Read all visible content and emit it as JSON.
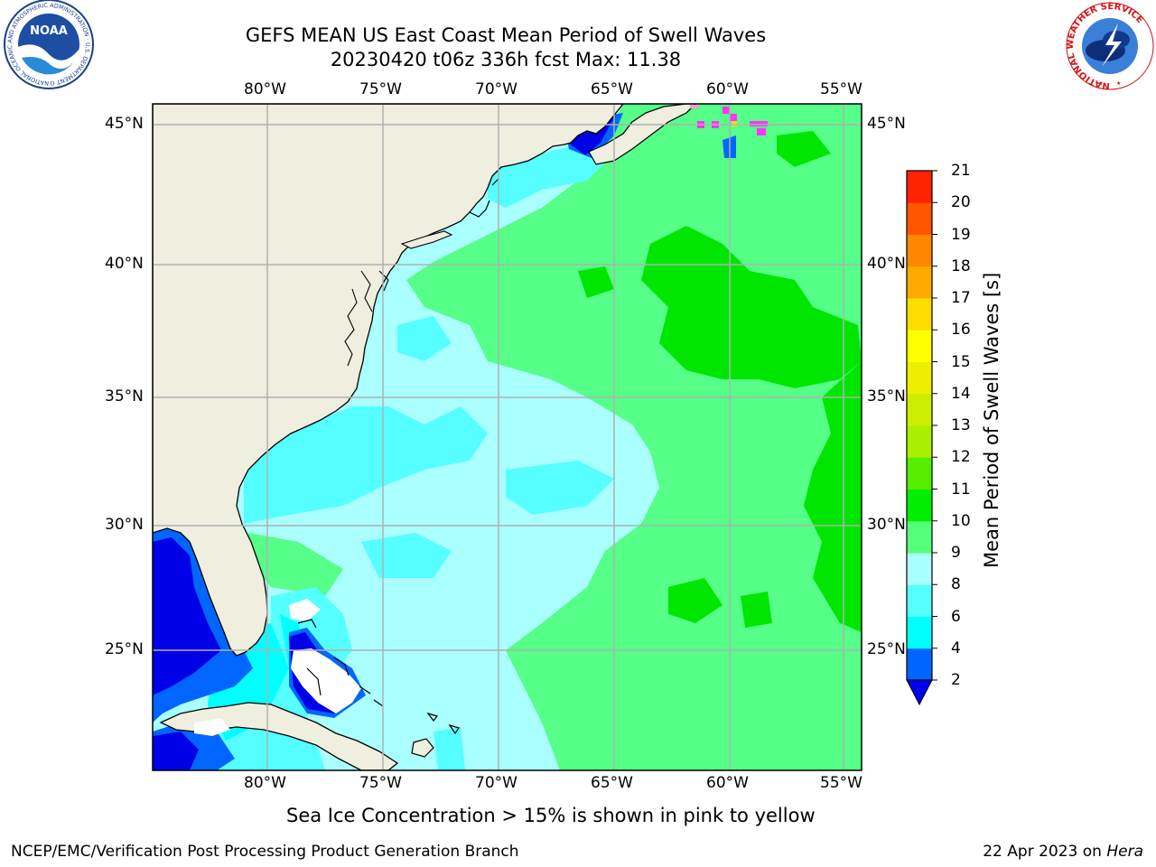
{
  "title": {
    "line1": "GEFS MEAN US East Coast Mean Period of Swell Waves",
    "line2": "20230420 t06z 336h fcst   Max: 11.38"
  },
  "axes": {
    "lon_labels": [
      "80°W",
      "75°W",
      "70°W",
      "65°W",
      "60°W",
      "55°W"
    ],
    "lat_labels": [
      "45°N",
      "40°N",
      "35°N",
      "30°N",
      "25°N"
    ]
  },
  "map": {
    "lon_range": [
      -85,
      -54
    ],
    "lat_range": [
      20.5,
      46
    ],
    "land_color": "#efeedf",
    "coast_color": "#000000",
    "grid_color": "#b0b0b0",
    "field_colors": {
      "dark_blue": "#0000e6",
      "blue": "#0066ff",
      "cyan": "#00ffff",
      "light_cyan": "#55ffff",
      "pale_cyan": "#aaffff",
      "light_green": "#55ff88",
      "green": "#00e600",
      "sea_ice": "#ff33ff"
    }
  },
  "colorbar": {
    "title": "Mean Period of Swell Waves [s]",
    "extend": "min",
    "levels": [
      "2",
      "4",
      "6",
      "8",
      "9",
      "10",
      "11",
      "12",
      "13",
      "14",
      "15",
      "16",
      "17",
      "18",
      "19",
      "20",
      "21"
    ],
    "colors": [
      "#0064ff",
      "#00ffff",
      "#55ffff",
      "#aaffff",
      "#55ff77",
      "#00ee00",
      "#55ee00",
      "#aaee00",
      "#ccee00",
      "#eeee00",
      "#ffff00",
      "#ffdd00",
      "#ffaa00",
      "#ff8800",
      "#ff5500",
      "#ff2200"
    ],
    "under_color": "#0000ee"
  },
  "note": "Sea Ice Concentration > 15% is shown in pink to yellow",
  "footer": {
    "left": "NCEP/EMC/Verification Post Processing Product Generation Branch",
    "date": "22 Apr 2023 on",
    "machine": "Hera"
  },
  "logos": {
    "noaa": {
      "text": "NOAA",
      "ring_text": "NATIONAL OCEANIC AND ATMOSPHERIC ADMINISTRATION · U.S. DEPARTMENT OF COMMERCE"
    },
    "nws": {
      "ring_text": "NATIONAL WEATHER SERVICE"
    }
  }
}
